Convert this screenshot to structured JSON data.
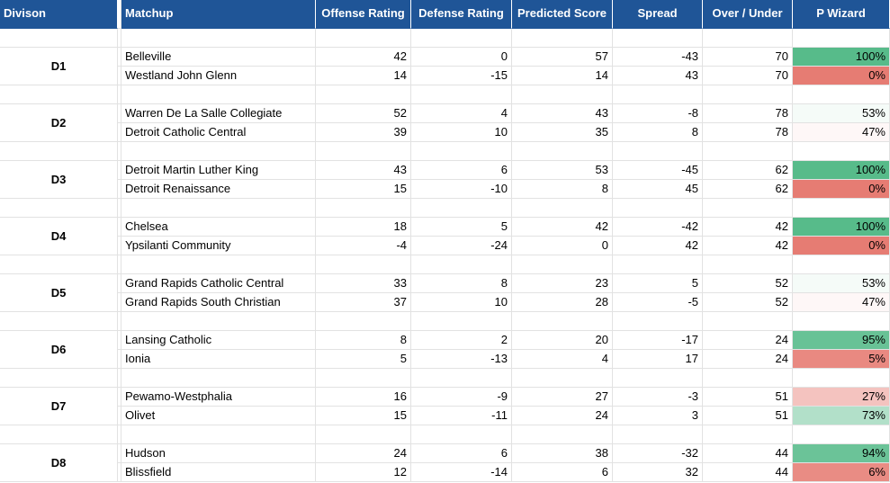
{
  "header": {
    "division": "Divison",
    "matchup": "Matchup",
    "offense_rating": "Offense Rating",
    "defense_rating": "Defense Rating",
    "predicted_score": "Predicted Score",
    "spread": "Spread",
    "over_under": "Over / Under",
    "p_wizard": "P Wizard"
  },
  "colors": {
    "header_bg": "#1f5597",
    "win_strong": "#57bb8a",
    "loss_strong": "#e67c73"
  },
  "divisions": [
    {
      "label": "D1",
      "teams": [
        {
          "team": "Belleville",
          "offense": "42",
          "defense": "0",
          "predicted": "57",
          "spread": "-43",
          "ou": "70",
          "pw": "100%",
          "pw_value": 1.0
        },
        {
          "team": "Westland John Glenn",
          "offense": "14",
          "defense": "-15",
          "predicted": "14",
          "spread": "43",
          "ou": "70",
          "pw": "0%",
          "pw_value": 0.0
        }
      ]
    },
    {
      "label": "D2",
      "teams": [
        {
          "team": "Warren De La Salle Collegiate",
          "offense": "52",
          "defense": "4",
          "predicted": "43",
          "spread": "-8",
          "ou": "78",
          "pw": "53%",
          "pw_value": 0.53
        },
        {
          "team": "Detroit Catholic Central",
          "offense": "39",
          "defense": "10",
          "predicted": "35",
          "spread": "8",
          "ou": "78",
          "pw": "47%",
          "pw_value": 0.47
        }
      ]
    },
    {
      "label": "D3",
      "teams": [
        {
          "team": "Detroit Martin Luther King",
          "offense": "43",
          "defense": "6",
          "predicted": "53",
          "spread": "-45",
          "ou": "62",
          "pw": "100%",
          "pw_value": 1.0
        },
        {
          "team": "Detroit Renaissance",
          "offense": "15",
          "defense": "-10",
          "predicted": "8",
          "spread": "45",
          "ou": "62",
          "pw": "0%",
          "pw_value": 0.0
        }
      ]
    },
    {
      "label": "D4",
      "teams": [
        {
          "team": "Chelsea",
          "offense": "18",
          "defense": "5",
          "predicted": "42",
          "spread": "-42",
          "ou": "42",
          "pw": "100%",
          "pw_value": 1.0
        },
        {
          "team": "Ypsilanti Community",
          "offense": "-4",
          "defense": "-24",
          "predicted": "0",
          "spread": "42",
          "ou": "42",
          "pw": "0%",
          "pw_value": 0.0
        }
      ]
    },
    {
      "label": "D5",
      "teams": [
        {
          "team": "Grand Rapids Catholic Central",
          "offense": "33",
          "defense": "8",
          "predicted": "23",
          "spread": "5",
          "ou": "52",
          "pw": "53%",
          "pw_value": 0.53
        },
        {
          "team": "Grand Rapids South Christian",
          "offense": "37",
          "defense": "10",
          "predicted": "28",
          "spread": "-5",
          "ou": "52",
          "pw": "47%",
          "pw_value": 0.47
        }
      ]
    },
    {
      "label": "D6",
      "teams": [
        {
          "team": "Lansing Catholic",
          "offense": "8",
          "defense": "2",
          "predicted": "20",
          "spread": "-17",
          "ou": "24",
          "pw": "95%",
          "pw_value": 0.95
        },
        {
          "team": "Ionia",
          "offense": "5",
          "defense": "-13",
          "predicted": "4",
          "spread": "17",
          "ou": "24",
          "pw": "5%",
          "pw_value": 0.05
        }
      ]
    },
    {
      "label": "D7",
      "teams": [
        {
          "team": "Pewamo-Westphalia",
          "offense": "16",
          "defense": "-9",
          "predicted": "27",
          "spread": "-3",
          "ou": "51",
          "pw": "27%",
          "pw_value": 0.27
        },
        {
          "team": "Olivet",
          "offense": "15",
          "defense": "-11",
          "predicted": "24",
          "spread": "3",
          "ou": "51",
          "pw": "73%",
          "pw_value": 0.73
        }
      ]
    },
    {
      "label": "D8",
      "teams": [
        {
          "team": "Hudson",
          "offense": "24",
          "defense": "6",
          "predicted": "38",
          "spread": "-32",
          "ou": "44",
          "pw": "94%",
          "pw_value": 0.94
        },
        {
          "team": "Blissfield",
          "offense": "12",
          "defense": "-14",
          "predicted": "6",
          "spread": "32",
          "ou": "44",
          "pw": "6%",
          "pw_value": 0.06
        }
      ]
    }
  ]
}
